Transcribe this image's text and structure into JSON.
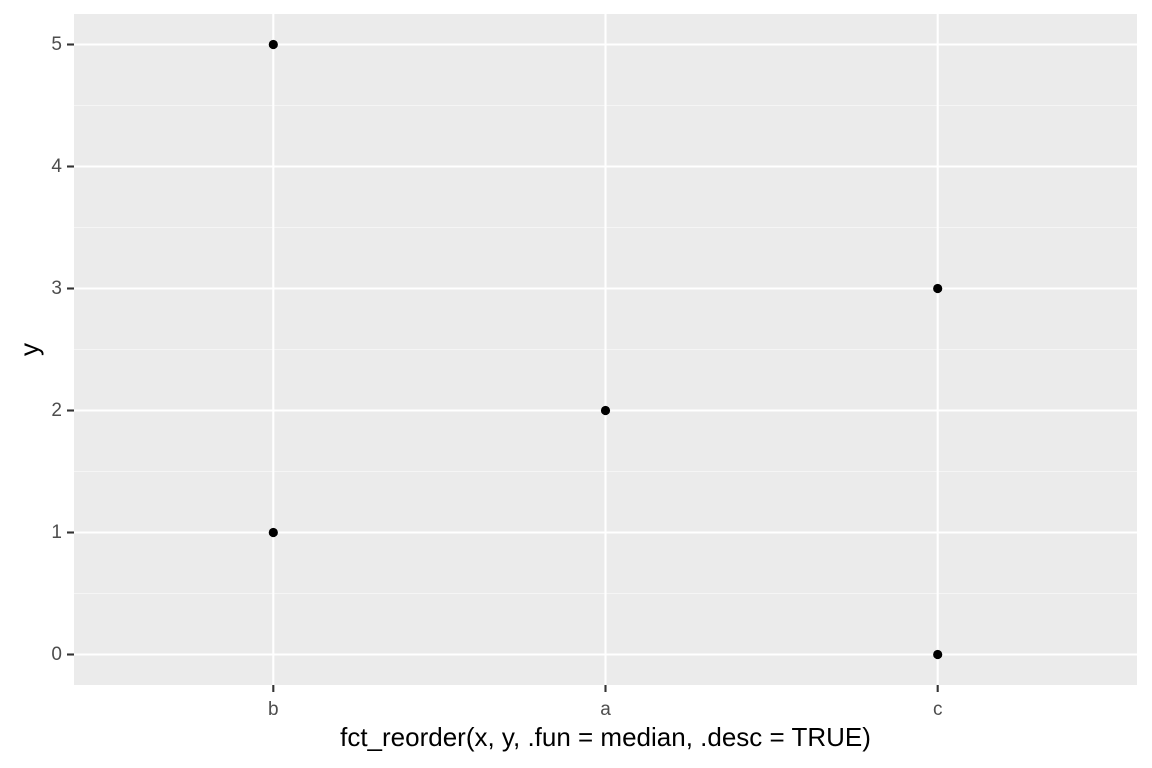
{
  "chart_data": {
    "type": "scatter",
    "title": "",
    "xlabel": "fct_reorder(x, y, .fun = median, .desc = TRUE)",
    "ylabel": "y",
    "categories": [
      "b",
      "a",
      "c"
    ],
    "points": [
      {
        "x": "b",
        "y": 5
      },
      {
        "x": "b",
        "y": 1
      },
      {
        "x": "a",
        "y": 2
      },
      {
        "x": "c",
        "y": 3
      },
      {
        "x": "c",
        "y": 0
      }
    ],
    "yticks": [
      0,
      1,
      2,
      3,
      4,
      5
    ],
    "ylim": [
      -0.25,
      5.25
    ],
    "grid": true,
    "legend": "none",
    "colors": {
      "panel_background": "#EBEBEB",
      "grid_major": "#FFFFFF",
      "grid_minor": "#F5F5F5",
      "point": "#000000",
      "tick_mark": "#333333"
    }
  }
}
